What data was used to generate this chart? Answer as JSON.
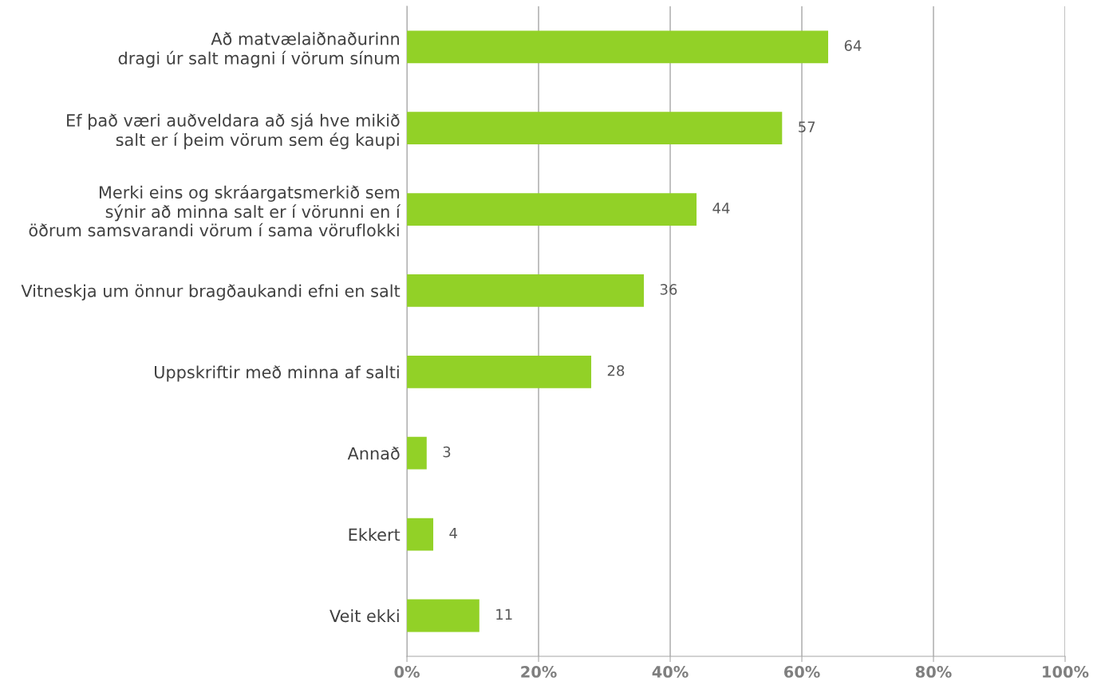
{
  "chart_data": {
    "type": "bar",
    "orientation": "horizontal",
    "categories": [
      "Að matvælaiðnaðurinn\ndragi úr salt magni í vörum sínum",
      "Ef það væri auðveldara að sjá hve mikið\nsalt er í þeim vörum sem ég kaupi",
      "Merki eins og skráargatsmerkið sem\nsýnir að minna salt er í vörunni en í\nöðrum samsvarandi vörum í sama vöruflokki",
      "Vitneskja um önnur bragðaukandi efni en salt",
      "Uppskriftir með minna af salti",
      "Annað",
      "Ekkert",
      "Veit ekki"
    ],
    "values": [
      64,
      57,
      44,
      36,
      28,
      3,
      4,
      11
    ],
    "color": "#92d127",
    "xlim": [
      0,
      100
    ],
    "xticks": [
      {
        "value": 0,
        "label": "0%"
      },
      {
        "value": 20,
        "label": "20%"
      },
      {
        "value": 40,
        "label": "40%"
      },
      {
        "value": 60,
        "label": "60%"
      },
      {
        "value": 80,
        "label": "80%"
      },
      {
        "value": 100,
        "label": "100%"
      }
    ],
    "grid": "x",
    "data_labels": true
  }
}
